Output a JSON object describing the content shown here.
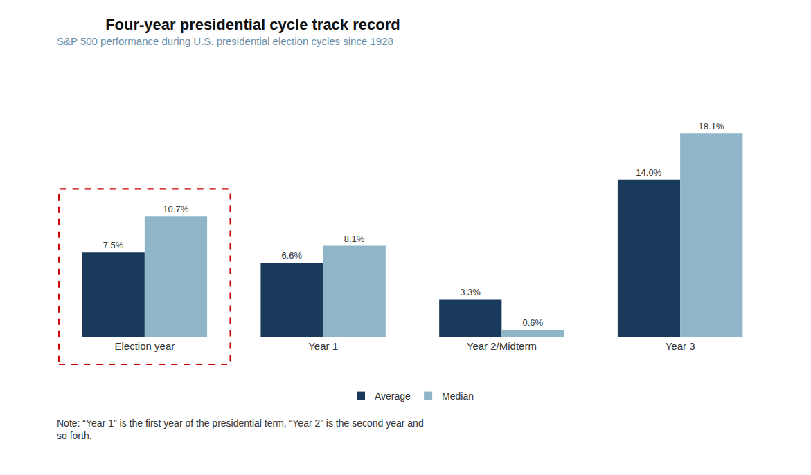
{
  "chart_data": {
    "type": "bar",
    "title": "Four-year presidential cycle track record",
    "subtitle": "S&P 500 performance during U.S. presidential election cycles since 1928",
    "note": "Note: “Year 1” is the first year of the presidential term, “Year 2” is the second year and\nso forth.",
    "categories": [
      "Election year",
      "Year 1",
      "Year 2/Midterm",
      "Year 3"
    ],
    "series": [
      {
        "name": "Average",
        "color": "#1a3a5c",
        "values": [
          7.5,
          6.6,
          3.3,
          14.0
        ],
        "value_labels": [
          "7.5%",
          "6.6%",
          "3.3%",
          "14.0%"
        ]
      },
      {
        "name": "Median",
        "color": "#8eb5c8",
        "values": [
          10.7,
          8.1,
          0.6,
          18.1
        ],
        "value_labels": [
          "10.7%",
          "8.1%",
          "0.6%",
          "18.1%"
        ]
      }
    ],
    "ylim": [
      0,
      22
    ],
    "grid": false,
    "legend": "bottom",
    "data_labels": true,
    "tick_labels": "x"
  }
}
